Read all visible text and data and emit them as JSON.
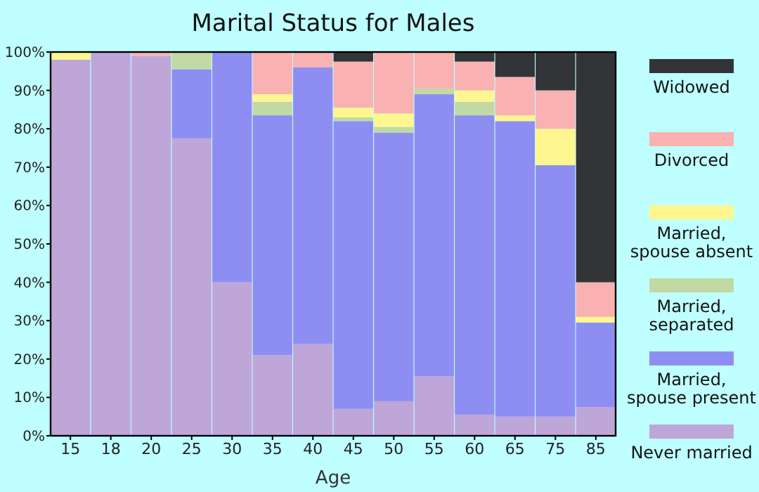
{
  "chart_data": {
    "type": "bar",
    "stacked": true,
    "title": "Marital Status for Males",
    "xlabel": "Age",
    "categories": [
      "15",
      "18",
      "20",
      "25",
      "30",
      "35",
      "40",
      "45",
      "50",
      "55",
      "60",
      "65",
      "75",
      "85"
    ],
    "series": [
      {
        "name": "Never married",
        "color": "#bea6d8",
        "values": [
          98,
          100,
          99,
          77.5,
          40,
          21,
          24,
          7,
          9,
          15.5,
          5.5,
          5,
          5,
          7.5
        ]
      },
      {
        "name": "Married, spouse present",
        "color": "#8e8ef2",
        "values": [
          0,
          0,
          0,
          18,
          60,
          62.5,
          72,
          75,
          70,
          73.5,
          78,
          77,
          65.5,
          22
        ]
      },
      {
        "name": "Married, separated",
        "color": "#c2d9a3",
        "values": [
          0,
          0,
          0,
          4.5,
          0,
          3.5,
          0,
          1,
          1.5,
          1.5,
          3.5,
          0,
          0,
          0
        ]
      },
      {
        "name": "Married, spouse absent",
        "color": "#fff68f",
        "values": [
          2,
          0,
          0,
          0,
          0,
          2,
          0,
          2.5,
          3.5,
          0,
          3,
          1.5,
          9.5,
          1.5
        ]
      },
      {
        "name": "Divorced",
        "color": "#f9b1b1",
        "values": [
          0,
          0,
          1,
          0,
          0,
          11,
          4,
          12,
          16,
          9.5,
          7.5,
          10,
          10,
          9
        ]
      },
      {
        "name": "Widowed",
        "color": "#333438",
        "values": [
          0,
          0,
          0,
          0,
          0,
          0,
          0,
          2.5,
          0,
          0,
          2.5,
          6.5,
          10,
          60
        ]
      }
    ],
    "ylim": [
      0,
      100
    ],
    "yticks": [
      {
        "value": 0,
        "label": "0%"
      },
      {
        "value": 10,
        "label": "10%"
      },
      {
        "value": 20,
        "label": "20%"
      },
      {
        "value": 30,
        "label": "30%"
      },
      {
        "value": 40,
        "label": "40%"
      },
      {
        "value": 50,
        "label": "50%"
      },
      {
        "value": 60,
        "label": "60%"
      },
      {
        "value": 70,
        "label": "70%"
      },
      {
        "value": 80,
        "label": "80%"
      },
      {
        "value": 90,
        "label": "90%"
      },
      {
        "value": 100,
        "label": "100%"
      }
    ],
    "grid": false,
    "legend": "right"
  }
}
